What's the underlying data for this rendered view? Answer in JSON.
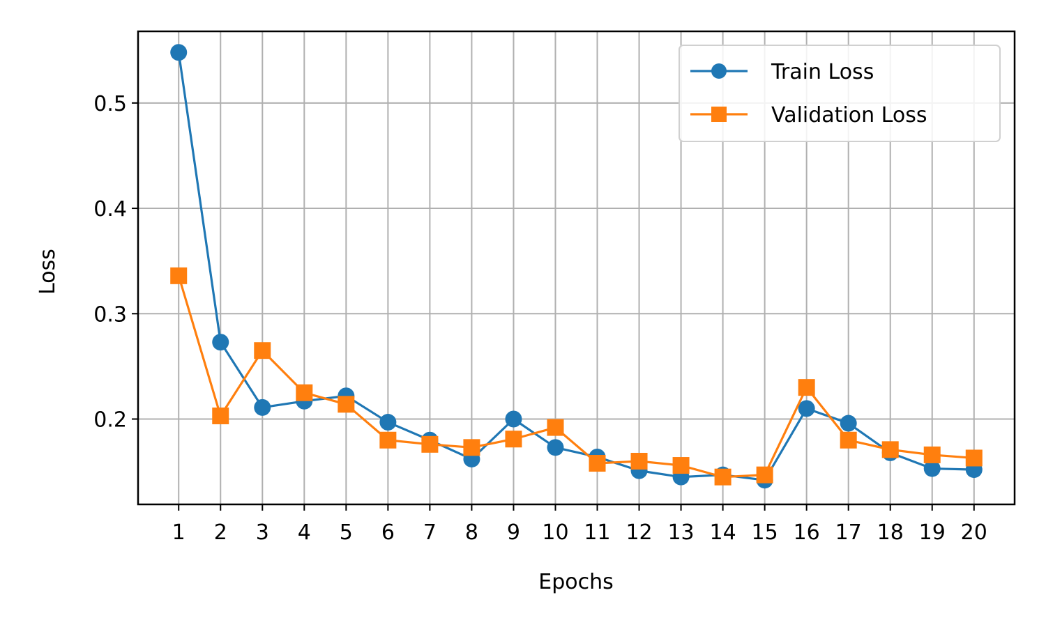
{
  "chart_data": {
    "type": "line",
    "title": "",
    "xlabel": "Epochs",
    "ylabel": "Loss",
    "x": [
      1,
      2,
      3,
      4,
      5,
      6,
      7,
      8,
      9,
      10,
      11,
      12,
      13,
      14,
      15,
      16,
      17,
      18,
      19,
      20
    ],
    "xlim": [
      0.03,
      20.97
    ],
    "ylim": [
      0.119,
      0.568
    ],
    "yticks": [
      0.2,
      0.3,
      0.4,
      0.5
    ],
    "ytick_labels": [
      "0.2",
      "0.3",
      "0.4",
      "0.5"
    ],
    "grid": true,
    "legend_position": "upper right",
    "series": [
      {
        "name": "Train Loss",
        "color": "#1f77b4",
        "marker": "circle",
        "values": [
          0.548,
          0.273,
          0.211,
          0.217,
          0.222,
          0.197,
          0.18,
          0.162,
          0.2,
          0.173,
          0.164,
          0.151,
          0.145,
          0.147,
          0.142,
          0.21,
          0.196,
          0.168,
          0.153,
          0.152
        ]
      },
      {
        "name": "Validation Loss",
        "color": "#ff7f0e",
        "marker": "square",
        "values": [
          0.336,
          0.203,
          0.265,
          0.225,
          0.214,
          0.18,
          0.176,
          0.173,
          0.181,
          0.192,
          0.158,
          0.16,
          0.156,
          0.145,
          0.147,
          0.23,
          0.18,
          0.171,
          0.166,
          0.163
        ]
      }
    ]
  }
}
